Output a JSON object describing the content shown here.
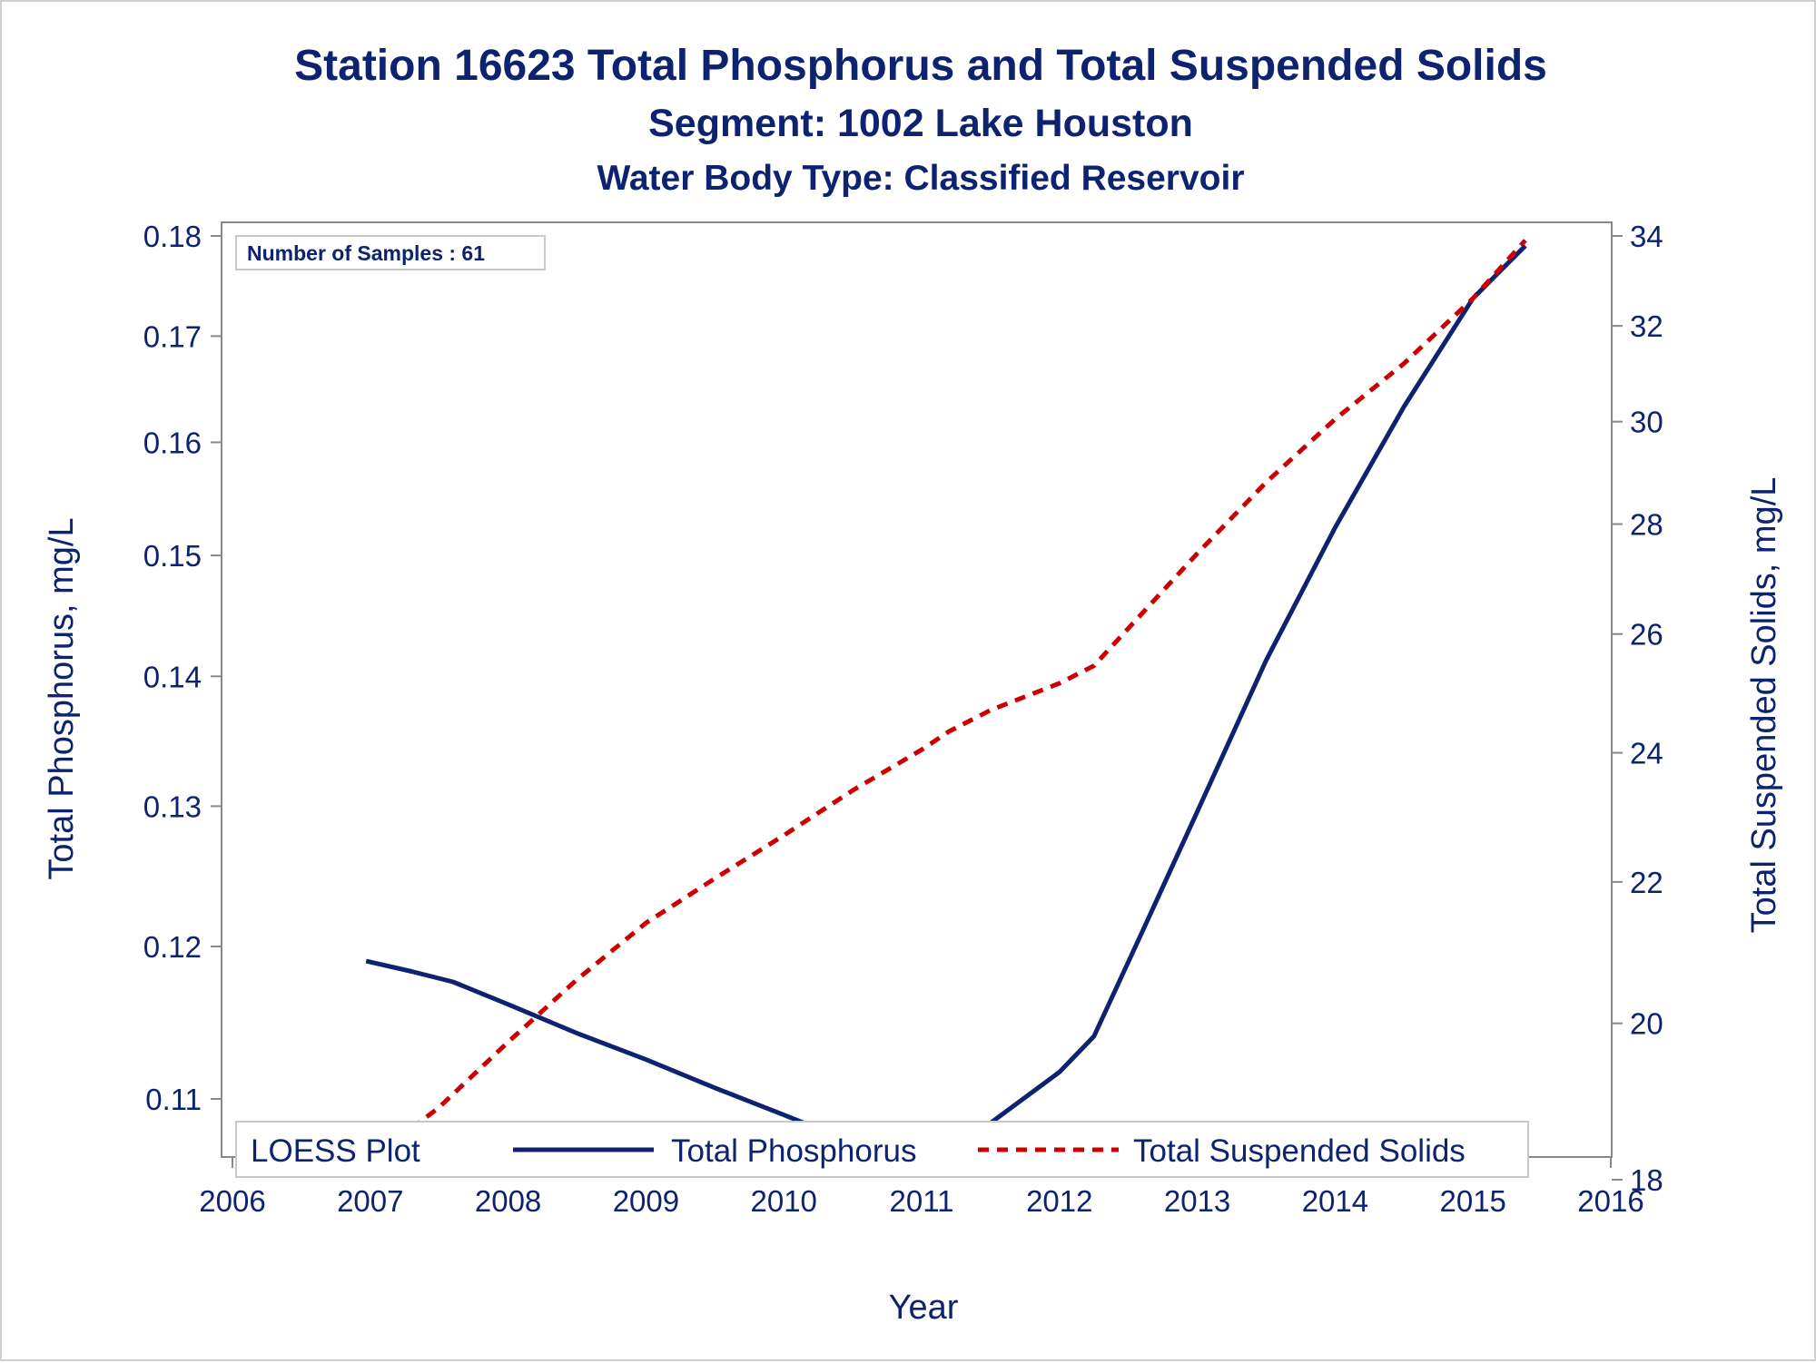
{
  "title": "Station 16623  Total Phosphorus and Total Suspended Solids",
  "subtitle1": "Segment: 1002  Lake Houston",
  "subtitle2": "Water Body Type: Classified Reservoir",
  "inset_label": "Number of Samples : 61",
  "legend": {
    "title": "LOESS Plot",
    "series1": "Total Phosphorus",
    "series2": "Total Suspended Solids"
  },
  "colors": {
    "phosphorus": "#0d2370",
    "tss": "#cc0000",
    "axis": "#888888",
    "text": "#0d2370"
  },
  "chart_data": {
    "type": "line",
    "xlabel": "Year",
    "ylabel_left": "Total Phosphorus, mg/L",
    "ylabel_right": "Total Suspended Solids, mg/L",
    "xlim": [
      2006,
      2016
    ],
    "x_ticks": [
      "2006",
      "2007",
      "2008",
      "2009",
      "2010",
      "2011",
      "2012",
      "2013",
      "2014",
      "2015",
      "2016"
    ],
    "y_left_scale": "log",
    "ylim_left": [
      0.1065,
      0.18
    ],
    "y_left_ticks": [
      "0.11",
      "0.12",
      "0.13",
      "0.14",
      "0.15",
      "0.16",
      "0.17",
      "0.18"
    ],
    "y_right_scale": "log",
    "ylim_right": [
      18,
      34
    ],
    "y_right_ticks": [
      "18",
      "20",
      "22",
      "24",
      "26",
      "28",
      "30",
      "32",
      "34"
    ],
    "legend_position": "bottom-inside",
    "series": [
      {
        "name": "Total Phosphorus",
        "axis": "left",
        "style": "solid",
        "x": [
          2006.97,
          2007.3,
          2007.6,
          2008.0,
          2008.5,
          2009.0,
          2009.5,
          2010.0,
          2010.5,
          2011.0,
          2011.15,
          2011.5,
          2012.0,
          2012.25,
          2012.6,
          2013.0,
          2013.5,
          2014.0,
          2014.5,
          2015.0,
          2015.38
        ],
        "y": [
          0.119,
          0.1183,
          0.1176,
          0.1161,
          0.1142,
          0.1125,
          0.1107,
          0.109,
          0.1073,
          0.1055,
          0.1065,
          0.1085,
          0.1117,
          0.114,
          0.121,
          0.1296,
          0.1413,
          0.1524,
          0.1633,
          0.1737,
          0.179
        ]
      },
      {
        "name": "Total Suspended Solids",
        "axis": "right",
        "style": "dashed",
        "x": [
          2006.97,
          2007.5,
          2008.0,
          2008.5,
          2009.0,
          2009.5,
          2010.0,
          2010.5,
          2011.0,
          2011.2,
          2011.5,
          2012.0,
          2012.25,
          2012.5,
          2013.0,
          2013.5,
          2014.0,
          2014.5,
          2015.0,
          2015.38
        ],
        "y": [
          18.2,
          18.9,
          19.75,
          20.6,
          21.4,
          22.05,
          22.7,
          23.4,
          24.05,
          24.35,
          24.7,
          25.15,
          25.45,
          26.1,
          27.45,
          28.8,
          30.05,
          31.2,
          32.6,
          33.9
        ]
      }
    ]
  }
}
